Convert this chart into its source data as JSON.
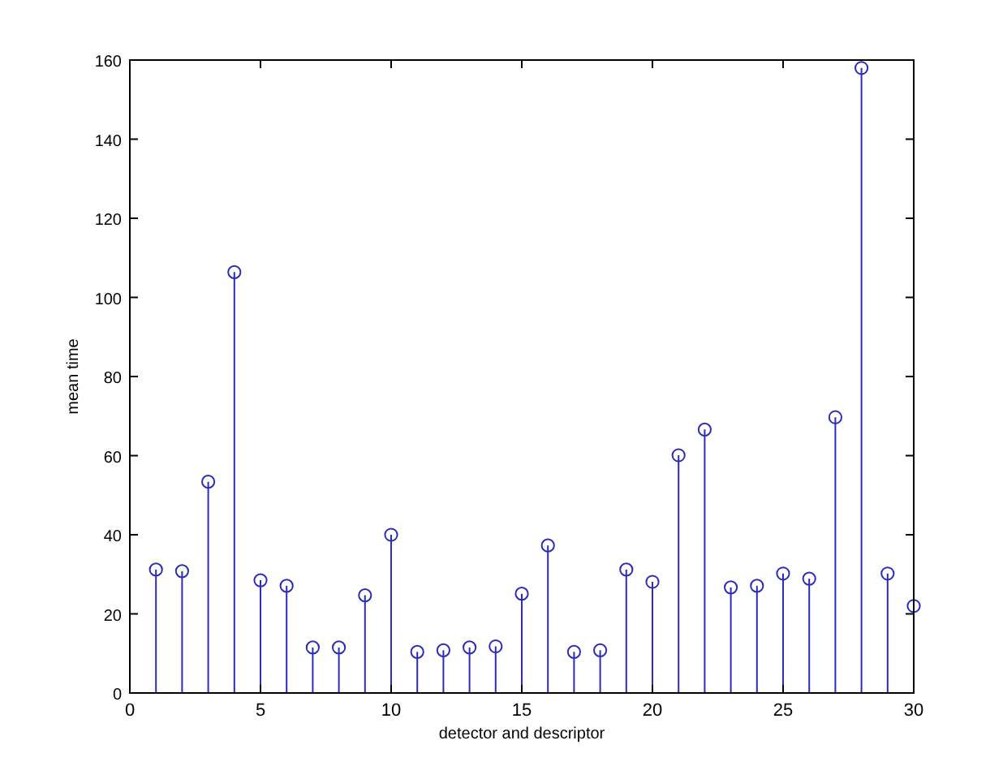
{
  "chart_data": {
    "type": "lollipop",
    "xlabel": "detector and descriptor",
    "ylabel": "mean time",
    "x": [
      1,
      2,
      3,
      4,
      5,
      6,
      7,
      8,
      9,
      10,
      11,
      12,
      13,
      14,
      15,
      16,
      17,
      18,
      19,
      20,
      21,
      22,
      23,
      24,
      25,
      26,
      27,
      28,
      29,
      30
    ],
    "series": [
      {
        "color": "#2b2bbd",
        "values": [
          31.2,
          30.8,
          53.4,
          106.4,
          28.5,
          27.1,
          11.5,
          11.5,
          24.7,
          40,
          10.4,
          10.8,
          11.5,
          11.8,
          25.1,
          37.3,
          10.4,
          10.8,
          31.2,
          28.1,
          60.1,
          66.6,
          26.7,
          27.1,
          30.2,
          28.9,
          69.7,
          158,
          30.2,
          22
        ]
      }
    ],
    "xlim": [
      0,
      30
    ],
    "ylim": [
      0,
      160
    ],
    "xticks": [
      0,
      5,
      10,
      15,
      20,
      25,
      30
    ],
    "yticks": [
      0,
      20,
      40,
      60,
      80,
      100,
      120,
      140,
      160
    ],
    "marker": "circle",
    "grid": false
  }
}
